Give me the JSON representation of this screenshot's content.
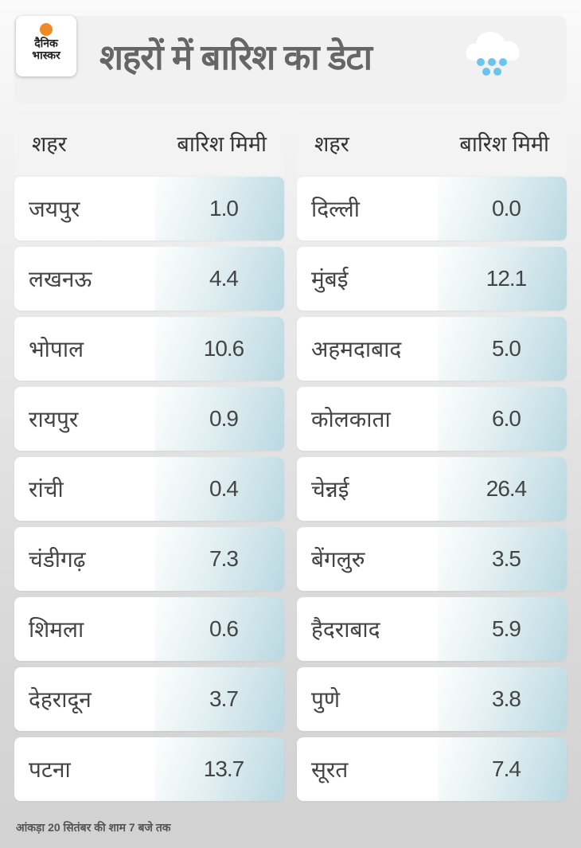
{
  "brand": {
    "logo_text_line1": "दैनिक",
    "logo_text_line2": "भास्कर"
  },
  "title": "शहरों में बारिश का डेटा",
  "icon": "rain-cloud-icon",
  "colors": {
    "accent_sun": "#f08a24",
    "rain_drops": "#6cc4ee",
    "value_gradient_end": "#b9d8e1"
  },
  "chart_data": {
    "type": "table",
    "title": "शहरों में बारिश का डेटा",
    "columns": [
      "शहर",
      "बारिश मिमी"
    ],
    "left": [
      {
        "city": "जयपुर",
        "rain": "1.0"
      },
      {
        "city": "लखनऊ",
        "rain": "4.4"
      },
      {
        "city": "भोपाल",
        "rain": "10.6"
      },
      {
        "city": "रायपुर",
        "rain": "0.9"
      },
      {
        "city": "रांची",
        "rain": "0.4"
      },
      {
        "city": "चंडीगढ़",
        "rain": "7.3"
      },
      {
        "city": "शिमला",
        "rain": "0.6"
      },
      {
        "city": "देहरादून",
        "rain": "3.7"
      },
      {
        "city": "पटना",
        "rain": "13.7"
      }
    ],
    "right": [
      {
        "city": "दिल्ली",
        "rain": "0.0"
      },
      {
        "city": "मुंबई",
        "rain": "12.1"
      },
      {
        "city": "अहमदाबाद",
        "rain": "5.0"
      },
      {
        "city": "कोलकाता",
        "rain": "6.0"
      },
      {
        "city": "चेन्नई",
        "rain": "26.4"
      },
      {
        "city": "बेंगलुरु",
        "rain": "3.5"
      },
      {
        "city": "हैदराबाद",
        "rain": "5.9"
      },
      {
        "city": "पुणे",
        "rain": "3.8"
      },
      {
        "city": "सूरत",
        "rain": "7.4"
      }
    ]
  },
  "footnote": "आंकड़ा 20 सितंबर की शाम 7 बजे तक"
}
